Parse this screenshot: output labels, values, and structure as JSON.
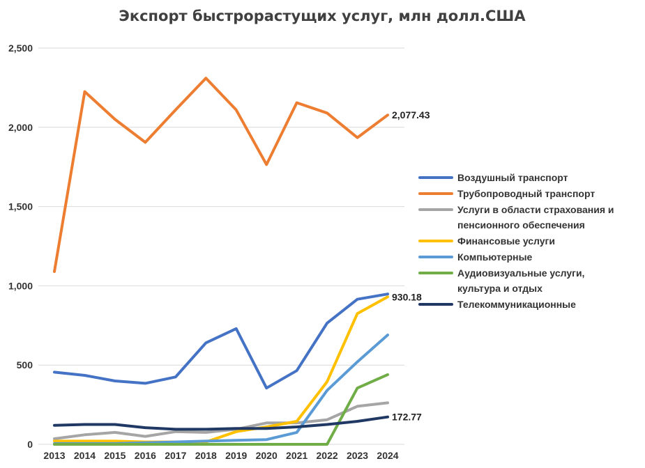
{
  "chart_data": {
    "type": "line",
    "title": "Экспорт быстрорастущих услуг, млн долл.США",
    "xlabel": "",
    "ylabel": "",
    "categories": [
      "2013",
      "2014",
      "2015",
      "2016",
      "2017",
      "2018",
      "2019",
      "2020",
      "2021",
      "2022",
      "2023",
      "2024"
    ],
    "ylim": [
      0,
      2500
    ],
    "yticks": [
      0,
      500,
      1000,
      1500,
      2000,
      2500
    ],
    "ytick_labels": [
      "0",
      "500",
      "1,000",
      "1,500",
      "2,000",
      "2,500"
    ],
    "grid": true,
    "legend_position": "right",
    "series": [
      {
        "name": "Воздушный транспорт",
        "legend_lines": [
          "Воздушный транспорт"
        ],
        "color": "#4472C4",
        "values": [
          455,
          435,
          400,
          385,
          425,
          640,
          730,
          355,
          465,
          765,
          915,
          948
        ]
      },
      {
        "name": "Трубопроводный транспорт",
        "legend_lines": [
          "Трубопроводный транспорт"
        ],
        "color": "#ED7D31",
        "values": [
          1090,
          2225,
          2050,
          1905,
          2110,
          2310,
          2110,
          1765,
          2155,
          2090,
          1935,
          2077.43
        ]
      },
      {
        "name": "Услуги в области страхования и пенсионного обеспечения",
        "legend_lines": [
          "Услуги в области страхования и",
          "пенсионного обеспечения"
        ],
        "color": "#A5A5A5",
        "values": [
          35,
          60,
          75,
          50,
          80,
          75,
          95,
          135,
          135,
          155,
          240,
          262
        ]
      },
      {
        "name": "Финансовые услуги",
        "legend_lines": [
          "Финансовые услуги"
        ],
        "color": "#FFC000",
        "values": [
          20,
          20,
          20,
          15,
          15,
          15,
          80,
          110,
          145,
          395,
          825,
          930.18
        ]
      },
      {
        "name": "Компьютерные",
        "legend_lines": [
          "Компьютерные"
        ],
        "color": "#5B9BD5",
        "values": [
          5,
          5,
          5,
          10,
          15,
          20,
          25,
          30,
          75,
          340,
          520,
          690
        ]
      },
      {
        "name": "Аудиовизуальные услуги, культура и отдых",
        "legend_lines": [
          "Аудиовизуальные услуги,",
          "культура и отдых"
        ],
        "color": "#70AD47",
        "values": [
          0,
          0,
          0,
          0,
          0,
          0,
          0,
          0,
          0,
          0,
          355,
          440
        ]
      },
      {
        "name": "Телекоммуникационные",
        "legend_lines": [
          "Телекоммуникационные"
        ],
        "color": "#203864",
        "values": [
          120,
          125,
          125,
          105,
          95,
          95,
          100,
          100,
          110,
          125,
          145,
          172.77
        ]
      }
    ],
    "data_labels": [
      {
        "series": "Трубопроводный транспорт",
        "category": "2024",
        "text": "2,077.43"
      },
      {
        "series": "Финансовые услуги",
        "category": "2024",
        "text": "930.18"
      },
      {
        "series": "Телекоммуникационные",
        "category": "2024",
        "text": "172.77"
      }
    ]
  }
}
